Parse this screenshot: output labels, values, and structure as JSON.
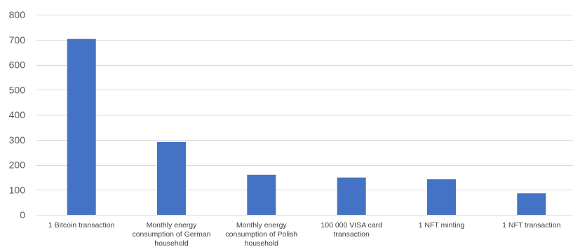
{
  "chart_data": {
    "type": "bar",
    "title": "",
    "xlabel": "",
    "ylabel": "",
    "ylim": [
      0,
      800
    ],
    "yticks": [
      0,
      100,
      200,
      300,
      400,
      500,
      600,
      700,
      800
    ],
    "grid": true,
    "legend": "none",
    "categories": [
      [
        "1  Bitcoin transaction"
      ],
      [
        "Monthly energy",
        "consumption of German",
        "household"
      ],
      [
        "Monthly energy",
        "consumption of Polish",
        "household"
      ],
      [
        "100 000 VISA card",
        "transaction"
      ],
      [
        "1 NFT minting"
      ],
      [
        "1  NFT transaction"
      ]
    ],
    "values": [
      703,
      291,
      160,
      149,
      142,
      86
    ],
    "colors": {
      "bar": "#4472C4",
      "grid": "#D9D9D9"
    }
  }
}
